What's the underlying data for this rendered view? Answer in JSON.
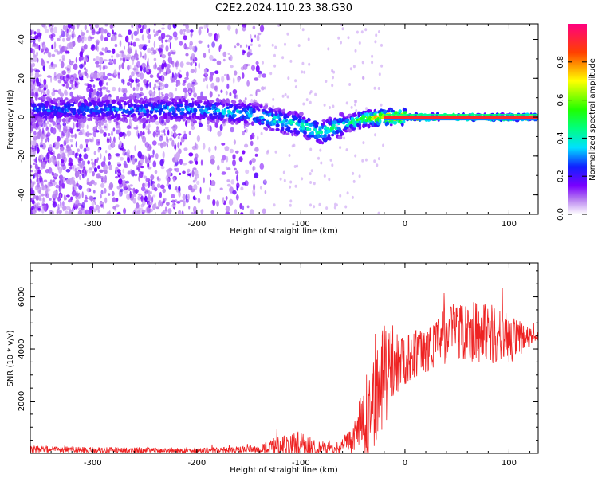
{
  "title": "C2E2.2024.110.23.38.G30",
  "chart_data": [
    {
      "type": "heatmap",
      "xlabel": "Height of straight line (km)",
      "ylabel": "Frequency (Hz)",
      "xlim": [
        -360,
        128
      ],
      "ylim": [
        -50,
        48
      ],
      "x_ticks": [
        -300,
        -200,
        -100,
        0,
        100
      ],
      "y_ticks": [
        -40,
        -20,
        0,
        20,
        40
      ],
      "colorbar": {
        "label": "Normalized spectral amplitude",
        "range": [
          0,
          1
        ],
        "ticks": [
          "0.0",
          "0.2",
          "0.4",
          "0.6",
          "0.8"
        ]
      },
      "ridge": [
        {
          "x": -360,
          "freq": 4
        },
        {
          "x": -200,
          "freq": 4
        },
        {
          "x": -150,
          "freq": 2
        },
        {
          "x": -120,
          "freq": -2
        },
        {
          "x": -100,
          "freq": -4
        },
        {
          "x": -80,
          "freq": -8
        },
        {
          "x": -60,
          "freq": -4
        },
        {
          "x": -40,
          "freq": -1
        },
        {
          "x": -20,
          "freq": 0
        },
        {
          "x": 0,
          "freq": 0
        },
        {
          "x": 128,
          "freq": 0
        }
      ],
      "ridge_amplitude": [
        {
          "x": -360,
          "amp": 0.3
        },
        {
          "x": -200,
          "amp": 0.35
        },
        {
          "x": -100,
          "amp": 0.45
        },
        {
          "x": -50,
          "amp": 0.5
        },
        {
          "x": -20,
          "amp": 0.85
        },
        {
          "x": 0,
          "amp": 0.9
        },
        {
          "x": 128,
          "amp": 0.9
        }
      ]
    },
    {
      "type": "line",
      "xlabel": "Height of straight line (km)",
      "ylabel": "SNR (10 * v/v)",
      "xlim": [
        -360,
        128
      ],
      "ylim": [
        0,
        7300
      ],
      "x_ticks": [
        -300,
        -200,
        -100,
        0,
        100
      ],
      "y_ticks": [
        2000,
        4000,
        6000
      ],
      "color": "#ee2222",
      "envelope": [
        {
          "x": -360,
          "mean": 150,
          "amp": 150
        },
        {
          "x": -300,
          "mean": 120,
          "amp": 120
        },
        {
          "x": -200,
          "mean": 100,
          "amp": 100
        },
        {
          "x": -140,
          "mean": 150,
          "amp": 150
        },
        {
          "x": -120,
          "mean": 300,
          "amp": 400
        },
        {
          "x": -100,
          "mean": 300,
          "amp": 500
        },
        {
          "x": -85,
          "mean": 200,
          "amp": 400
        },
        {
          "x": -65,
          "mean": 150,
          "amp": 150
        },
        {
          "x": -50,
          "mean": 500,
          "amp": 600
        },
        {
          "x": -35,
          "mean": 1500,
          "amp": 1800
        },
        {
          "x": -20,
          "mean": 3000,
          "amp": 2000
        },
        {
          "x": -5,
          "mean": 3500,
          "amp": 1000
        },
        {
          "x": 20,
          "mean": 4000,
          "amp": 900
        },
        {
          "x": 50,
          "mean": 4800,
          "amp": 1200
        },
        {
          "x": 80,
          "mean": 4600,
          "amp": 1200
        },
        {
          "x": 110,
          "mean": 4300,
          "amp": 800
        },
        {
          "x": 128,
          "mean": 4500,
          "amp": 150
        }
      ]
    }
  ]
}
